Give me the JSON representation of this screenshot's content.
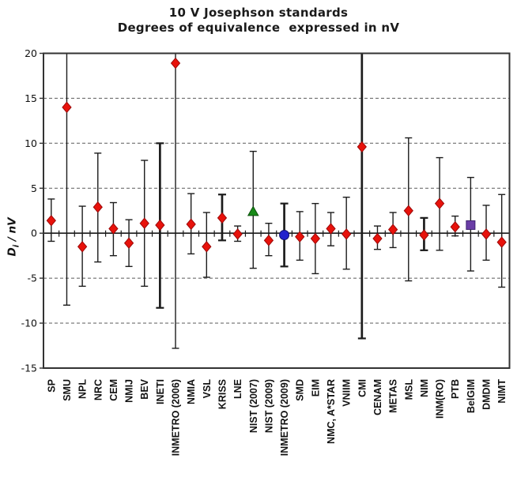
{
  "window": {
    "background": "#ffffff"
  },
  "chart_data": {
    "type": "scatter",
    "title": "10 V Josephson standards",
    "subtitle": "Degrees of equivalence  expressed in nV",
    "ylabel": {
      "base": "D",
      "sub": "i",
      "rest": " / nV"
    },
    "ylabel_text": "Di / nV",
    "ylim": [
      -15,
      20
    ],
    "yticks": [
      20,
      15,
      10,
      5,
      0,
      -5,
      -10,
      -15
    ],
    "grid_dashed": [
      15,
      10,
      5,
      -5,
      -10
    ],
    "legend": "none",
    "colors": {
      "diamond": "#e8120b",
      "diamond_edge": "#9b0a0a",
      "triangle": "#178a17",
      "triangle_edge": "#0c4f0c",
      "circle": "#2121cd",
      "circle_edge": "#11116e",
      "square": "#6a3da6",
      "square_edge": "#3e2371",
      "errorbar": "#1c1c1c",
      "grid": "#6e6e6e",
      "axis": "#333333",
      "text": "#111111"
    },
    "points": [
      {
        "label": "SP",
        "value": 1.4,
        "low": -0.9,
        "high": 3.8,
        "marker": "diamond",
        "thick": false,
        "clip_top": false
      },
      {
        "label": "SMU",
        "value": 14.0,
        "low": -8.0,
        "high": 20,
        "marker": "diamond",
        "thick": false,
        "clip_top": true
      },
      {
        "label": "NPL",
        "value": -1.5,
        "low": -5.9,
        "high": 3.0,
        "marker": "diamond",
        "thick": false,
        "clip_top": false
      },
      {
        "label": "NRC",
        "value": 2.9,
        "low": -3.2,
        "high": 8.9,
        "marker": "diamond",
        "thick": false,
        "clip_top": false
      },
      {
        "label": "CEM",
        "value": 0.5,
        "low": -2.5,
        "high": 3.4,
        "marker": "diamond",
        "thick": false,
        "clip_top": false
      },
      {
        "label": "NMIJ",
        "value": -1.1,
        "low": -3.7,
        "high": 1.5,
        "marker": "diamond",
        "thick": false,
        "clip_top": false
      },
      {
        "label": "BEV",
        "value": 1.1,
        "low": -5.9,
        "high": 8.1,
        "marker": "diamond",
        "thick": false,
        "clip_top": false
      },
      {
        "label": "INETI",
        "value": 0.9,
        "low": -8.3,
        "high": 10.0,
        "marker": "diamond",
        "thick": true,
        "clip_top": false
      },
      {
        "label": "INMETRO (2006)",
        "value": 18.9,
        "low": -12.8,
        "high": 20,
        "marker": "diamond",
        "thick": false,
        "clip_top": true
      },
      {
        "label": "NMIA",
        "value": 1.0,
        "low": -2.3,
        "high": 4.4,
        "marker": "diamond",
        "thick": false,
        "clip_top": false
      },
      {
        "label": "VSL",
        "value": -1.5,
        "low": -4.9,
        "high": 2.3,
        "marker": "diamond",
        "thick": false,
        "clip_top": false
      },
      {
        "label": "KRISS",
        "value": 1.7,
        "low": -0.8,
        "high": 4.3,
        "marker": "diamond",
        "thick": true,
        "clip_top": false
      },
      {
        "label": "LNE",
        "value": -0.1,
        "low": -0.9,
        "high": 0.8,
        "marker": "diamond",
        "thick": false,
        "clip_top": false
      },
      {
        "label": "NIST (2007)",
        "value": 2.4,
        "low": -3.9,
        "high": 9.1,
        "marker": "triangle",
        "thick": false,
        "clip_top": false
      },
      {
        "label": "NIST (2009)",
        "value": -0.8,
        "low": -2.5,
        "high": 1.1,
        "marker": "diamond",
        "thick": false,
        "clip_top": false
      },
      {
        "label": "INMETRO (2009)",
        "value": -0.2,
        "low": -3.7,
        "high": 3.3,
        "marker": "circle",
        "thick": true,
        "clip_top": false
      },
      {
        "label": "SMD",
        "value": -0.4,
        "low": -3.0,
        "high": 2.4,
        "marker": "diamond",
        "thick": false,
        "clip_top": false
      },
      {
        "label": "EIM",
        "value": -0.6,
        "low": -4.5,
        "high": 3.3,
        "marker": "diamond",
        "thick": false,
        "clip_top": false
      },
      {
        "label": "NMC, A*STAR",
        "value": 0.5,
        "low": -1.4,
        "high": 2.3,
        "marker": "diamond",
        "thick": false,
        "clip_top": false
      },
      {
        "label": "VNIIM",
        "value": -0.1,
        "low": -4.0,
        "high": 4.0,
        "marker": "diamond",
        "thick": false,
        "clip_top": false
      },
      {
        "label": "CMI",
        "value": 9.6,
        "low": -11.7,
        "high": 20,
        "marker": "diamond",
        "thick": true,
        "clip_top": true
      },
      {
        "label": "CENAM",
        "value": -0.6,
        "low": -1.8,
        "high": 0.8,
        "marker": "diamond",
        "thick": false,
        "clip_top": false
      },
      {
        "label": "METAS",
        "value": 0.4,
        "low": -1.6,
        "high": 2.3,
        "marker": "diamond",
        "thick": false,
        "clip_top": false
      },
      {
        "label": "MSL",
        "value": 2.5,
        "low": -5.3,
        "high": 10.6,
        "marker": "diamond",
        "thick": false,
        "clip_top": false
      },
      {
        "label": "NIM",
        "value": -0.2,
        "low": -1.9,
        "high": 1.7,
        "marker": "diamond",
        "thick": true,
        "clip_top": false
      },
      {
        "label": "INM(RO)",
        "value": 3.3,
        "low": -1.9,
        "high": 8.4,
        "marker": "diamond",
        "thick": false,
        "clip_top": false
      },
      {
        "label": "PTB",
        "value": 0.7,
        "low": -0.3,
        "high": 1.9,
        "marker": "diamond",
        "thick": false,
        "clip_top": false
      },
      {
        "label": "BelGIM",
        "value": 0.9,
        "low": -4.2,
        "high": 6.2,
        "marker": "square",
        "thick": false,
        "clip_top": false
      },
      {
        "label": "DMDM",
        "value": -0.1,
        "low": -3.0,
        "high": 3.1,
        "marker": "diamond",
        "thick": false,
        "clip_top": false
      },
      {
        "label": "NIMT",
        "value": -1.0,
        "low": -6.0,
        "high": 4.3,
        "marker": "diamond",
        "thick": false,
        "clip_top": false
      }
    ]
  }
}
